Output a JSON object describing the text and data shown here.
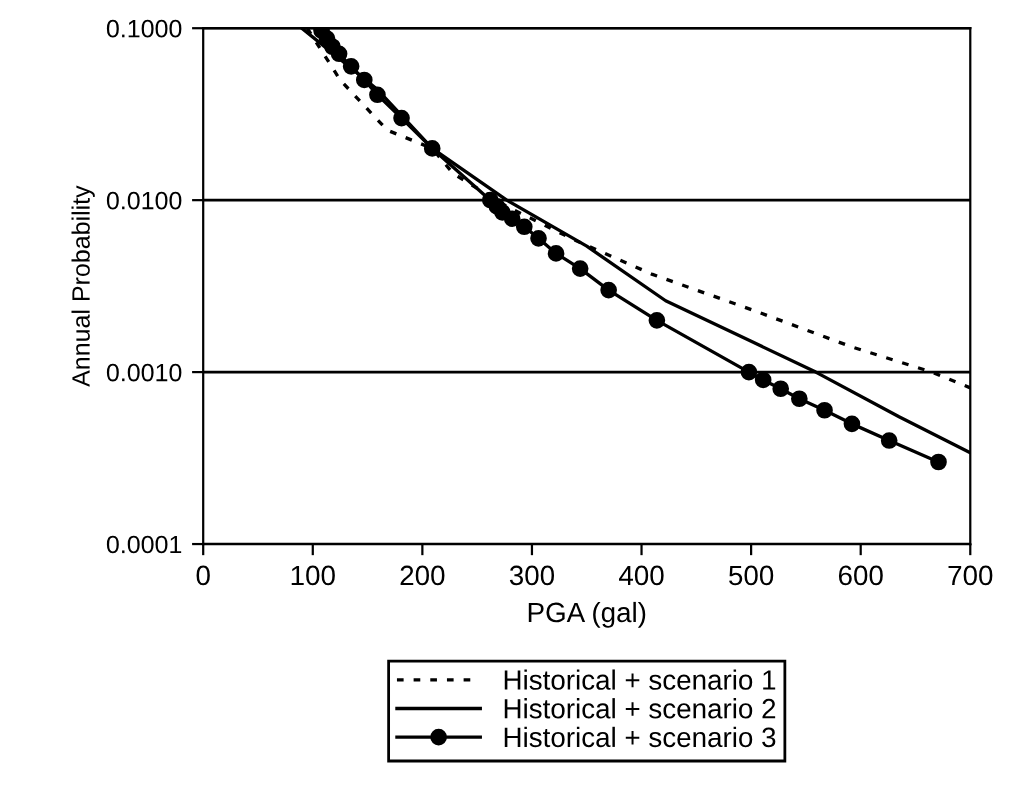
{
  "chart_data": {
    "type": "line",
    "xlabel": "PGA (gal)",
    "ylabel": "Annual Probability",
    "log": "y",
    "xlim": [
      0,
      700
    ],
    "xticks": [
      0,
      100,
      200,
      300,
      400,
      500,
      600,
      700
    ],
    "ylim": [
      0.0001,
      0.1
    ],
    "yticks": [
      {
        "value": 0.0001,
        "label": "0.0001"
      },
      {
        "value": 0.001,
        "label": "0.0010"
      },
      {
        "value": 0.01,
        "label": "0.0100"
      },
      {
        "value": 0.1,
        "label": "0.1000"
      }
    ],
    "grid": "y",
    "legend": "bottom",
    "series": [
      {
        "name": "Historical + scenario 1",
        "color": "#000000",
        "line_style": "dotted",
        "marker": "none",
        "x": [
          95,
          125,
          168,
          209,
          228,
          277,
          338,
          410,
          501,
          592,
          665,
          700
        ],
        "values": [
          0.1,
          0.05,
          0.0255,
          0.02,
          0.0143,
          0.0092,
          0.0059,
          0.0037,
          0.0023,
          0.0014,
          0.001,
          0.00081
        ]
      },
      {
        "name": "Historical + scenario 2",
        "color": "#000000",
        "line_style": "solid",
        "marker": "none",
        "x": [
          90,
          159,
          209,
          277,
          350,
          422,
          501,
          559,
          635,
          700
        ],
        "values": [
          0.1,
          0.044,
          0.02,
          0.01,
          0.0054,
          0.0026,
          0.0015,
          0.001,
          0.00055,
          0.00034
        ]
      },
      {
        "name": "Historical + scenario 3",
        "color": "#000000",
        "line_style": "solid",
        "marker": "circle",
        "x": [
          108,
          113,
          118,
          124,
          135,
          147,
          159,
          181,
          209,
          262,
          268,
          273,
          282,
          293,
          306,
          322,
          344,
          370,
          414,
          498,
          511,
          527,
          544,
          567,
          592,
          626,
          671
        ],
        "values": [
          0.097,
          0.087,
          0.078,
          0.071,
          0.06,
          0.05,
          0.041,
          0.03,
          0.02,
          0.01,
          0.0092,
          0.0085,
          0.0078,
          0.007,
          0.006,
          0.0049,
          0.004,
          0.003,
          0.002,
          0.001,
          0.0009,
          0.0008,
          0.0007,
          0.0006,
          0.0005,
          0.0004,
          0.0003
        ]
      }
    ]
  }
}
